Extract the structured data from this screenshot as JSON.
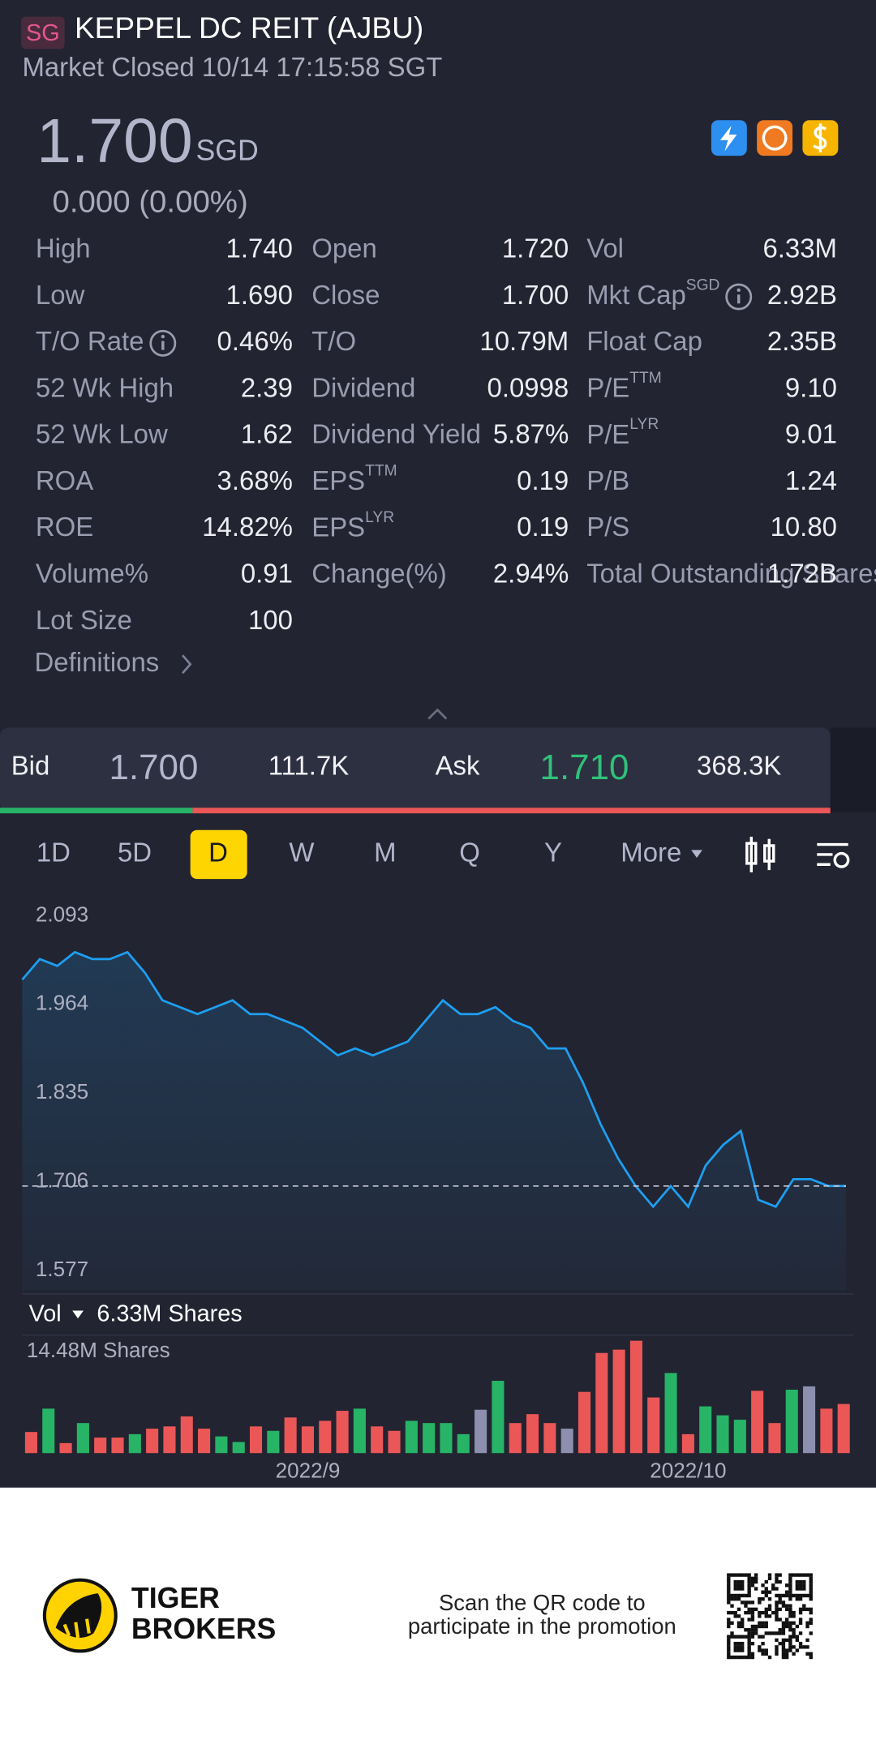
{
  "header": {
    "badge": "SG",
    "title": "KEPPEL DC REIT (AJBU)",
    "status": "Market Closed 10/14 17:15:58 SGT",
    "price": "1.700",
    "currency": "SGD",
    "change": "0.000 (0.00%)"
  },
  "stats": [
    [
      {
        "label": "High",
        "value": "1.740"
      },
      {
        "label": "Open",
        "value": "1.720"
      },
      {
        "label": "Vol",
        "value": "6.33M"
      }
    ],
    [
      {
        "label": "Low",
        "value": "1.690"
      },
      {
        "label": "Close",
        "value": "1.700"
      },
      {
        "label": "Mkt Cap",
        "sup": "SGD",
        "info": true,
        "value": "2.92B"
      }
    ],
    [
      {
        "label": "T/O Rate",
        "info": true,
        "value": "0.46%"
      },
      {
        "label": "T/O",
        "value": "10.79M"
      },
      {
        "label": "Float Cap",
        "value": "2.35B"
      }
    ],
    [
      {
        "label": "52 Wk High",
        "value": "2.39"
      },
      {
        "label": "Dividend",
        "value": "0.0998"
      },
      {
        "label": "P/E",
        "sup": "TTM",
        "value": "9.10"
      }
    ],
    [
      {
        "label": "52 Wk Low",
        "value": "1.62"
      },
      {
        "label": "Dividend Yield",
        "value": "5.87%"
      },
      {
        "label": "P/E",
        "sup": "LYR",
        "value": "9.01"
      }
    ],
    [
      {
        "label": "ROA",
        "value": "3.68%"
      },
      {
        "label": "EPS",
        "sup": "TTM",
        "value": "0.19"
      },
      {
        "label": "P/B",
        "value": "1.24"
      }
    ],
    [
      {
        "label": "ROE",
        "value": "14.82%"
      },
      {
        "label": "EPS",
        "sup": "LYR",
        "value": "0.19"
      },
      {
        "label": "P/S",
        "value": "10.80"
      }
    ],
    [
      {
        "label": "Volume%",
        "value": "0.91"
      },
      {
        "label": "Change(%)",
        "value": "2.94%"
      },
      {
        "label": "Total Outstanding Shares",
        "value": "1.72B"
      }
    ],
    [
      {
        "label": "Lot Size",
        "value": "100"
      }
    ]
  ],
  "definitions": "Definitions",
  "bid_ask": {
    "bid_label": "Bid",
    "bid": "1.700",
    "bid_size": "111.7K",
    "ask_label": "Ask",
    "ask": "1.710",
    "ask_size": "368.3K"
  },
  "periods": {
    "items": [
      "1D",
      "5D",
      "D",
      "W",
      "M",
      "Q",
      "Y",
      "More"
    ],
    "active": 2
  },
  "chart_data": [
    {
      "type": "line",
      "color": "#1e9ff2",
      "values": [
        2.0,
        2.03,
        2.02,
        2.04,
        2.03,
        2.03,
        2.04,
        2.01,
        1.97,
        1.96,
        1.95,
        1.96,
        1.97,
        1.95,
        1.95,
        1.94,
        1.93,
        1.91,
        1.89,
        1.9,
        1.89,
        1.9,
        1.91,
        1.94,
        1.97,
        1.95,
        1.95,
        1.96,
        1.94,
        1.93,
        1.9,
        1.9,
        1.85,
        1.79,
        1.74,
        1.7,
        1.67,
        1.7,
        1.67,
        1.73,
        1.76,
        1.78,
        1.68,
        1.67,
        1.71,
        1.71,
        1.7,
        1.7
      ],
      "reference_line": 1.7,
      "ylim": [
        1.577,
        2.093
      ],
      "yticks": [
        2.093,
        1.964,
        1.835,
        1.706,
        1.577
      ]
    },
    {
      "type": "bar",
      "title": "Vol",
      "subtitle": "6.33M Shares",
      "categories": [
        null,
        null,
        null,
        null,
        null,
        null,
        null,
        null,
        null,
        null,
        null,
        null,
        null,
        null,
        null,
        null,
        "2022/9",
        null,
        null,
        null,
        null,
        null,
        null,
        null,
        null,
        null,
        null,
        null,
        null,
        null,
        null,
        null,
        null,
        null,
        null,
        null,
        null,
        null,
        "2022/10",
        null,
        null,
        null,
        null,
        null,
        null,
        null,
        null,
        null
      ],
      "values": [
        2.72,
        5.73,
        1.29,
        3.87,
        2.0,
        2.0,
        2.44,
        3.15,
        3.44,
        4.73,
        3.15,
        2.15,
        1.43,
        3.44,
        2.87,
        4.59,
        3.44,
        4.16,
        5.45,
        5.73,
        3.44,
        2.87,
        4.16,
        3.87,
        3.87,
        2.44,
        5.59,
        9.32,
        3.87,
        5.02,
        3.87,
        3.15,
        7.89,
        12.9,
        13.33,
        14.48,
        7.17,
        10.32,
        2.44,
        6.02,
        4.87,
        4.3,
        8.03,
        3.87,
        8.17,
        8.6,
        5.73,
        6.33
      ],
      "colors": [
        "#eb5757",
        "#27b467",
        "#eb5757",
        "#27b467",
        "#eb5757",
        "#eb5757",
        "#27b467",
        "#eb5757",
        "#eb5757",
        "#eb5757",
        "#eb5757",
        "#27b467",
        "#27b467",
        "#eb5757",
        "#27b467",
        "#eb5757",
        "#eb5757",
        "#eb5757",
        "#eb5757",
        "#27b467",
        "#eb5757",
        "#eb5757",
        "#27b467",
        "#27b467",
        "#27b467",
        "#27b467",
        "#8c8fae",
        "#27b467",
        "#eb5757",
        "#eb5757",
        "#eb5757",
        "#8c8fae",
        "#eb5757",
        "#eb5757",
        "#eb5757",
        "#eb5757",
        "#eb5757",
        "#27b467",
        "#eb5757",
        "#27b467",
        "#27b467",
        "#27b467",
        "#eb5757",
        "#eb5757",
        "#27b467",
        "#8c8fae",
        "#eb5757",
        "#eb5757"
      ],
      "ylim": [
        0,
        14.48
      ],
      "yticks": [
        {
          "value": 14.48,
          "label": "14.48M Shares"
        }
      ]
    }
  ],
  "footer": {
    "brand_1": "TIGER",
    "brand_2": "BROKERS",
    "promo_1": "Scan the QR code to",
    "promo_2": "participate in the promotion"
  }
}
